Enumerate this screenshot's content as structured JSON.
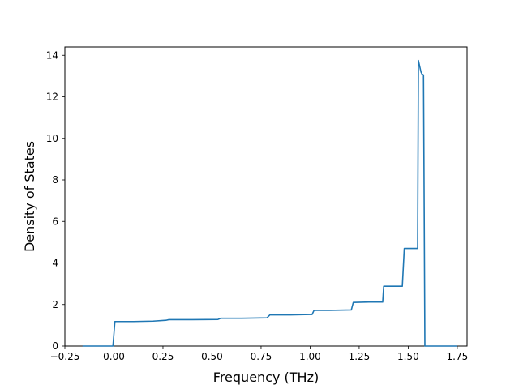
{
  "chart_data": {
    "type": "line",
    "title": "",
    "xlabel": "Frequency (THz)",
    "ylabel": "Density of States",
    "xlim": [
      -0.25,
      1.8
    ],
    "ylim": [
      0,
      14.4
    ],
    "xticks": [
      -0.25,
      0.0,
      0.25,
      0.5,
      0.75,
      1.0,
      1.25,
      1.5,
      1.75
    ],
    "xtick_labels": [
      "−0.25",
      "0.00",
      "0.25",
      "0.50",
      "0.75",
      "1.00",
      "1.25",
      "1.50",
      "1.75"
    ],
    "yticks": [
      0,
      2,
      4,
      6,
      8,
      10,
      12,
      14
    ],
    "ytick_labels": [
      "0",
      "2",
      "4",
      "6",
      "8",
      "10",
      "12",
      "14"
    ],
    "grid": false,
    "line_color": "#1f77b4",
    "series": [
      {
        "x": [
          -0.16,
          -0.005,
          0.005,
          0.1,
          0.2,
          0.265,
          0.28,
          0.4,
          0.53,
          0.545,
          0.65,
          0.78,
          0.795,
          0.9,
          1.01,
          1.02,
          1.1,
          1.21,
          1.22,
          1.3,
          1.37,
          1.375,
          1.425,
          1.47,
          1.48,
          1.53,
          1.548,
          1.552,
          1.565,
          1.57,
          1.578,
          1.585,
          1.7,
          1.75
        ],
        "y": [
          0,
          0,
          1.18,
          1.18,
          1.2,
          1.24,
          1.27,
          1.27,
          1.28,
          1.34,
          1.34,
          1.36,
          1.5,
          1.5,
          1.52,
          1.72,
          1.72,
          1.74,
          2.1,
          2.12,
          2.12,
          2.88,
          2.88,
          2.88,
          4.7,
          4.7,
          4.7,
          13.75,
          13.2,
          13.1,
          13.05,
          0,
          0,
          0
        ]
      }
    ]
  }
}
